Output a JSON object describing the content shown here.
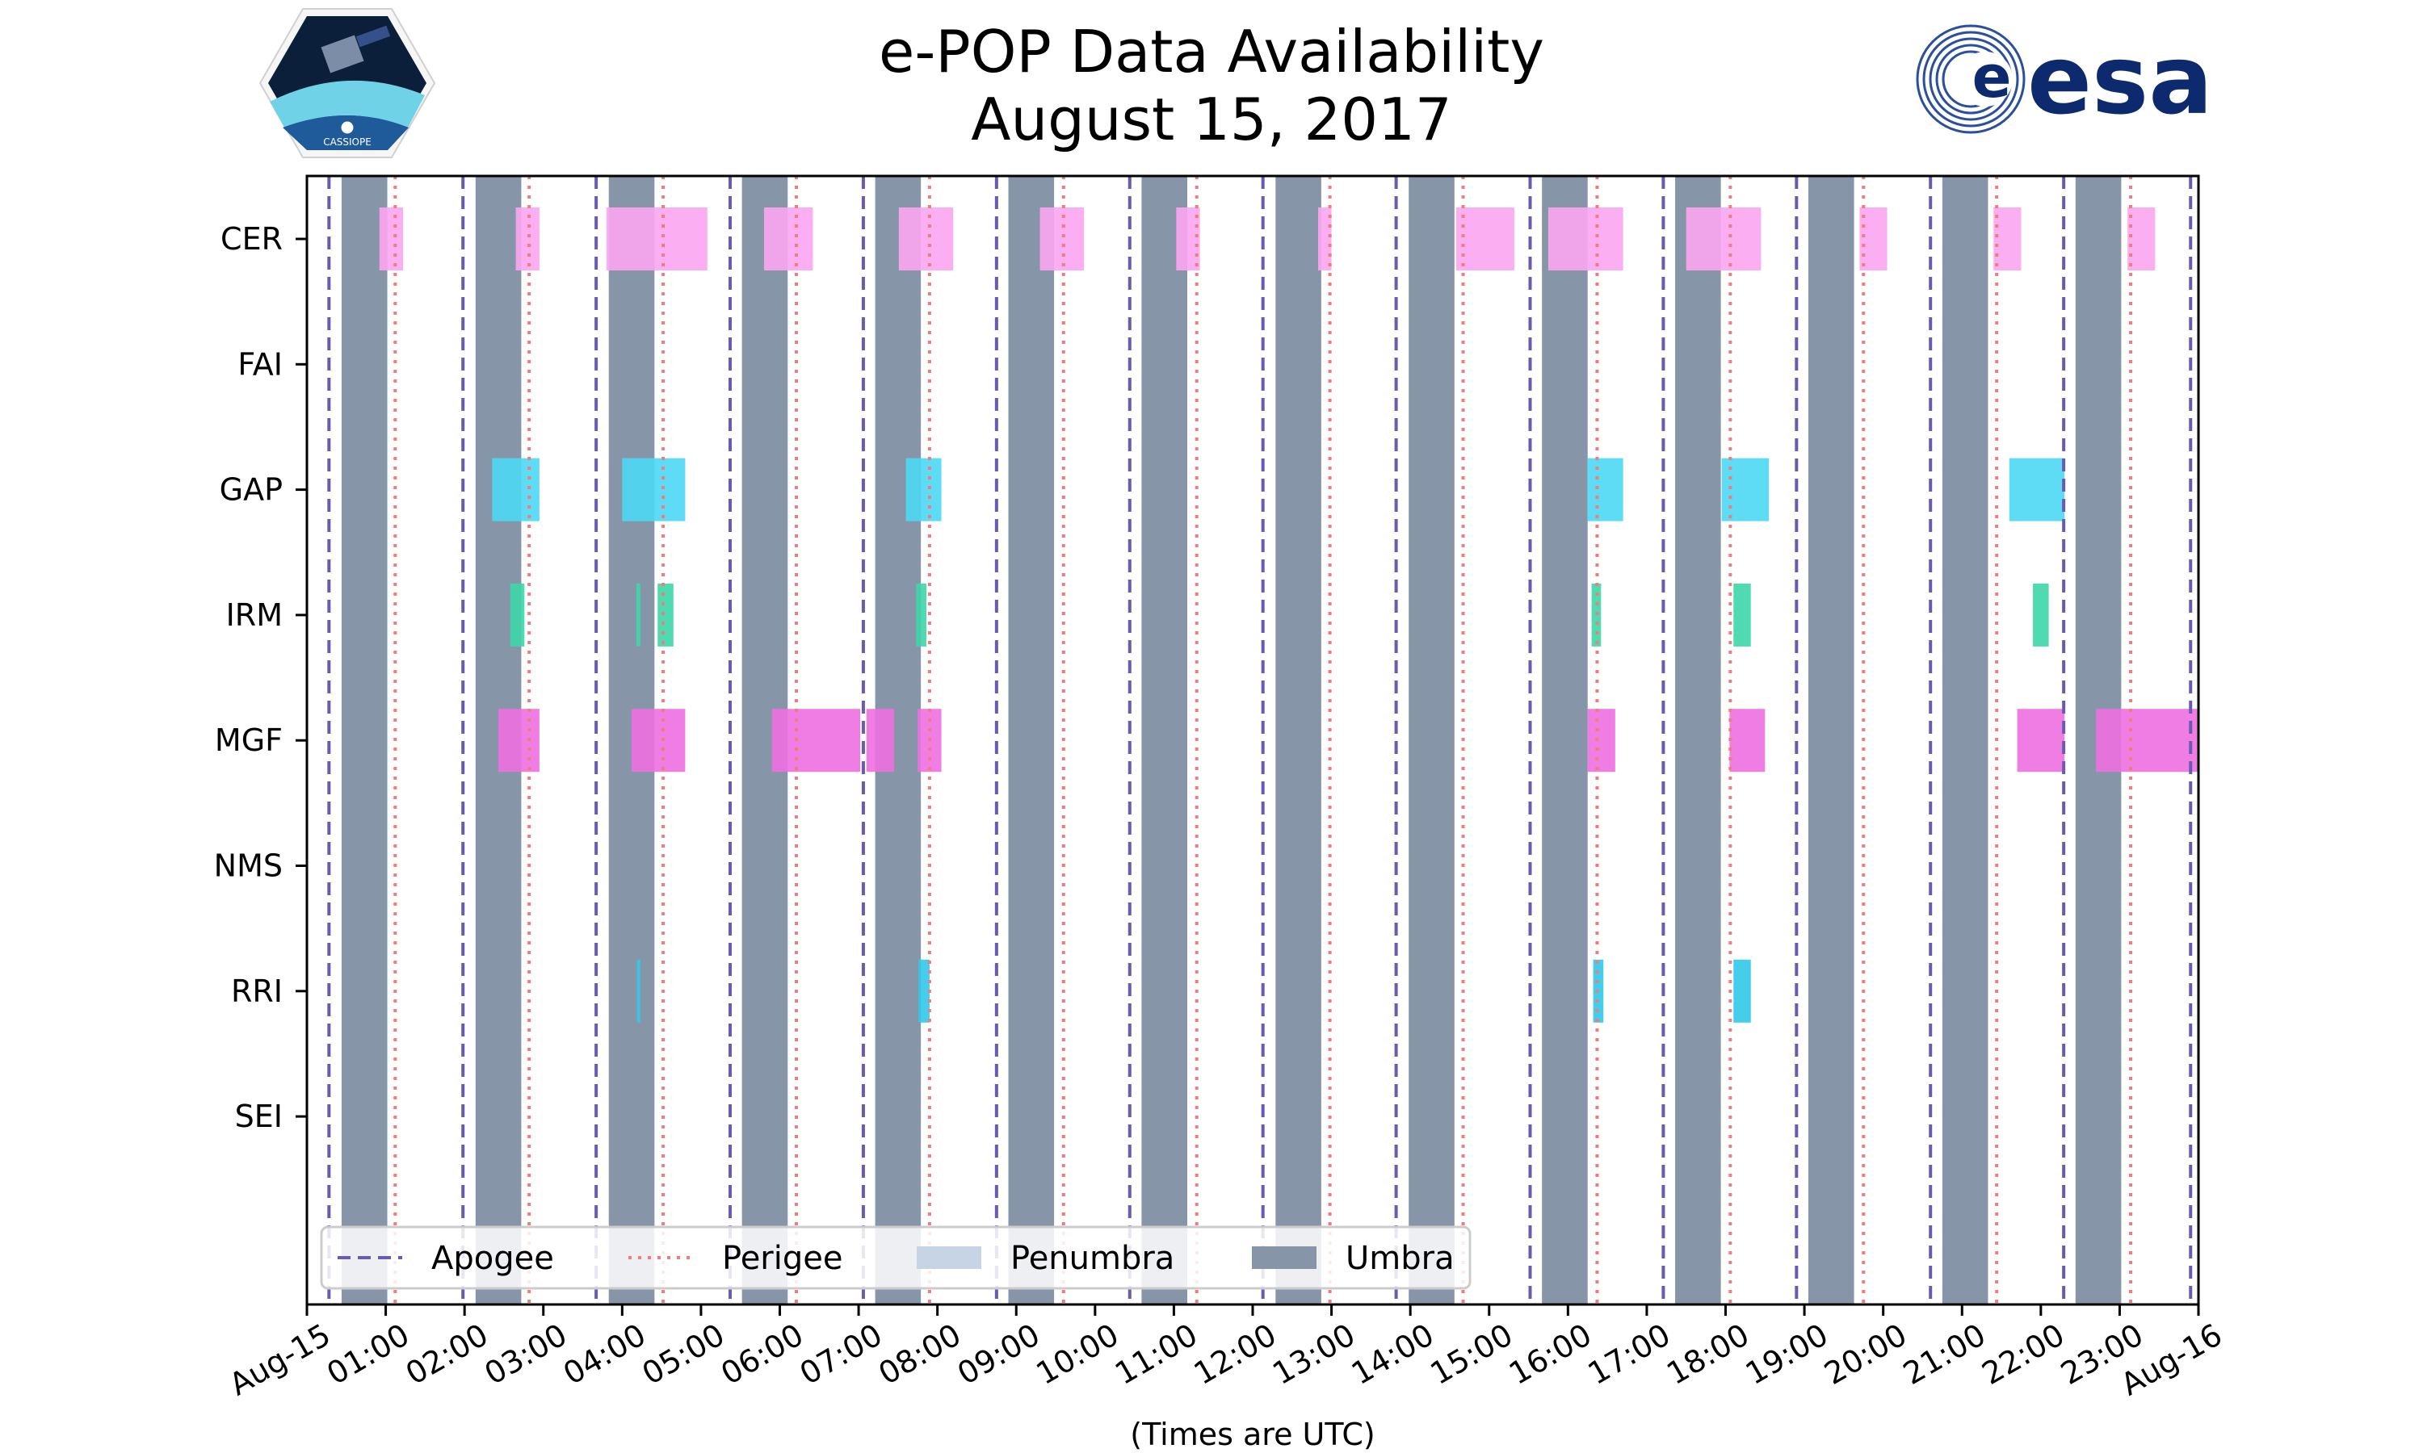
{
  "header": {
    "title_line1": "e-POP Data Availability",
    "title_line2": "August 15, 2017",
    "left_logo_text": "CASSIOPE",
    "right_logo_text": "esa"
  },
  "colors": {
    "apogee": "#6a5bb0",
    "perigee": "#f07c7c",
    "penumbra": "#c6d4e6",
    "umbra": "#8696a8",
    "CER": "#fca5f1",
    "GAP": "#4dd8f4",
    "IRM": "#3dd6a8",
    "MGF": "#ee6fe0",
    "RRI": "#31c8ea"
  },
  "chart_data": {
    "type": "timeline",
    "title": "e-POP Data Availability August 15, 2017",
    "xlabel": "(Times are UTC)",
    "ylabel": "",
    "x_unit": "hours UTC",
    "xlim": [
      0,
      24
    ],
    "x_ticks": [
      0,
      1,
      2,
      3,
      4,
      5,
      6,
      7,
      8,
      9,
      10,
      11,
      12,
      13,
      14,
      15,
      16,
      17,
      18,
      19,
      20,
      21,
      22,
      23,
      24
    ],
    "x_tick_labels": [
      "Aug-15",
      "01:00",
      "02:00",
      "03:00",
      "04:00",
      "05:00",
      "06:00",
      "07:00",
      "08:00",
      "09:00",
      "10:00",
      "11:00",
      "12:00",
      "13:00",
      "14:00",
      "15:00",
      "16:00",
      "17:00",
      "18:00",
      "19:00",
      "20:00",
      "21:00",
      "22:00",
      "23:00",
      "Aug-16"
    ],
    "instruments": [
      "CER",
      "FAI",
      "GAP",
      "IRM",
      "MGF",
      "NMS",
      "RRI",
      "SEI"
    ],
    "apogee": [
      0.28,
      1.98,
      3.67,
      5.37,
      7.06,
      8.75,
      10.44,
      12.13,
      13.82,
      15.52,
      17.21,
      18.9,
      20.6,
      22.29,
      23.9
    ],
    "perigee": [
      1.12,
      2.82,
      4.52,
      6.21,
      7.9,
      9.6,
      11.29,
      12.98,
      14.67,
      16.37,
      18.06,
      19.75,
      21.44,
      23.14
    ],
    "penumbra": [],
    "umbra": [
      [
        0.44,
        1.02
      ],
      [
        2.14,
        2.72
      ],
      [
        3.83,
        4.41
      ],
      [
        5.52,
        6.1
      ],
      [
        7.21,
        7.79
      ],
      [
        8.9,
        9.48
      ],
      [
        10.59,
        11.17
      ],
      [
        12.29,
        12.87
      ],
      [
        13.98,
        14.56
      ],
      [
        15.67,
        16.25
      ],
      [
        17.36,
        17.94
      ],
      [
        19.05,
        19.63
      ],
      [
        20.75,
        21.33
      ],
      [
        22.44,
        23.02
      ]
    ],
    "availability": {
      "CER": [
        [
          0.92,
          1.22
        ],
        [
          2.65,
          2.95
        ],
        [
          3.8,
          5.08
        ],
        [
          5.8,
          6.42
        ],
        [
          7.51,
          8.2
        ],
        [
          9.3,
          9.86
        ],
        [
          11.03,
          11.33
        ],
        [
          12.83,
          13.0
        ],
        [
          14.58,
          15.32
        ],
        [
          15.75,
          16.7
        ],
        [
          17.5,
          18.45
        ],
        [
          19.7,
          20.05
        ],
        [
          21.4,
          21.75
        ],
        [
          23.1,
          23.45
        ]
      ],
      "FAI": [],
      "GAP": [
        [
          2.35,
          2.95
        ],
        [
          4.0,
          4.8
        ],
        [
          7.6,
          8.05
        ],
        [
          16.25,
          16.7
        ],
        [
          17.95,
          18.55
        ],
        [
          21.6,
          22.3
        ]
      ],
      "IRM": [
        [
          2.58,
          2.76
        ],
        [
          4.18,
          4.23
        ],
        [
          4.45,
          4.65
        ],
        [
          7.73,
          7.86
        ],
        [
          16.3,
          16.42
        ],
        [
          18.1,
          18.32
        ],
        [
          21.9,
          22.1
        ]
      ],
      "MGF": [
        [
          2.43,
          2.95
        ],
        [
          4.12,
          4.8
        ],
        [
          5.9,
          7.02
        ],
        [
          7.1,
          7.45
        ],
        [
          7.75,
          8.05
        ],
        [
          16.25,
          16.6
        ],
        [
          18.05,
          18.5
        ],
        [
          21.7,
          22.3
        ],
        [
          22.7,
          24.0
        ]
      ],
      "NMS": [],
      "RRI": [
        [
          4.19,
          4.23
        ],
        [
          7.76,
          7.9
        ],
        [
          16.32,
          16.45
        ],
        [
          18.1,
          18.32
        ]
      ],
      "SEI": []
    },
    "legend": {
      "position": "lower-left",
      "entries": [
        "Apogee",
        "Perigee",
        "Penumbra",
        "Umbra"
      ]
    }
  }
}
